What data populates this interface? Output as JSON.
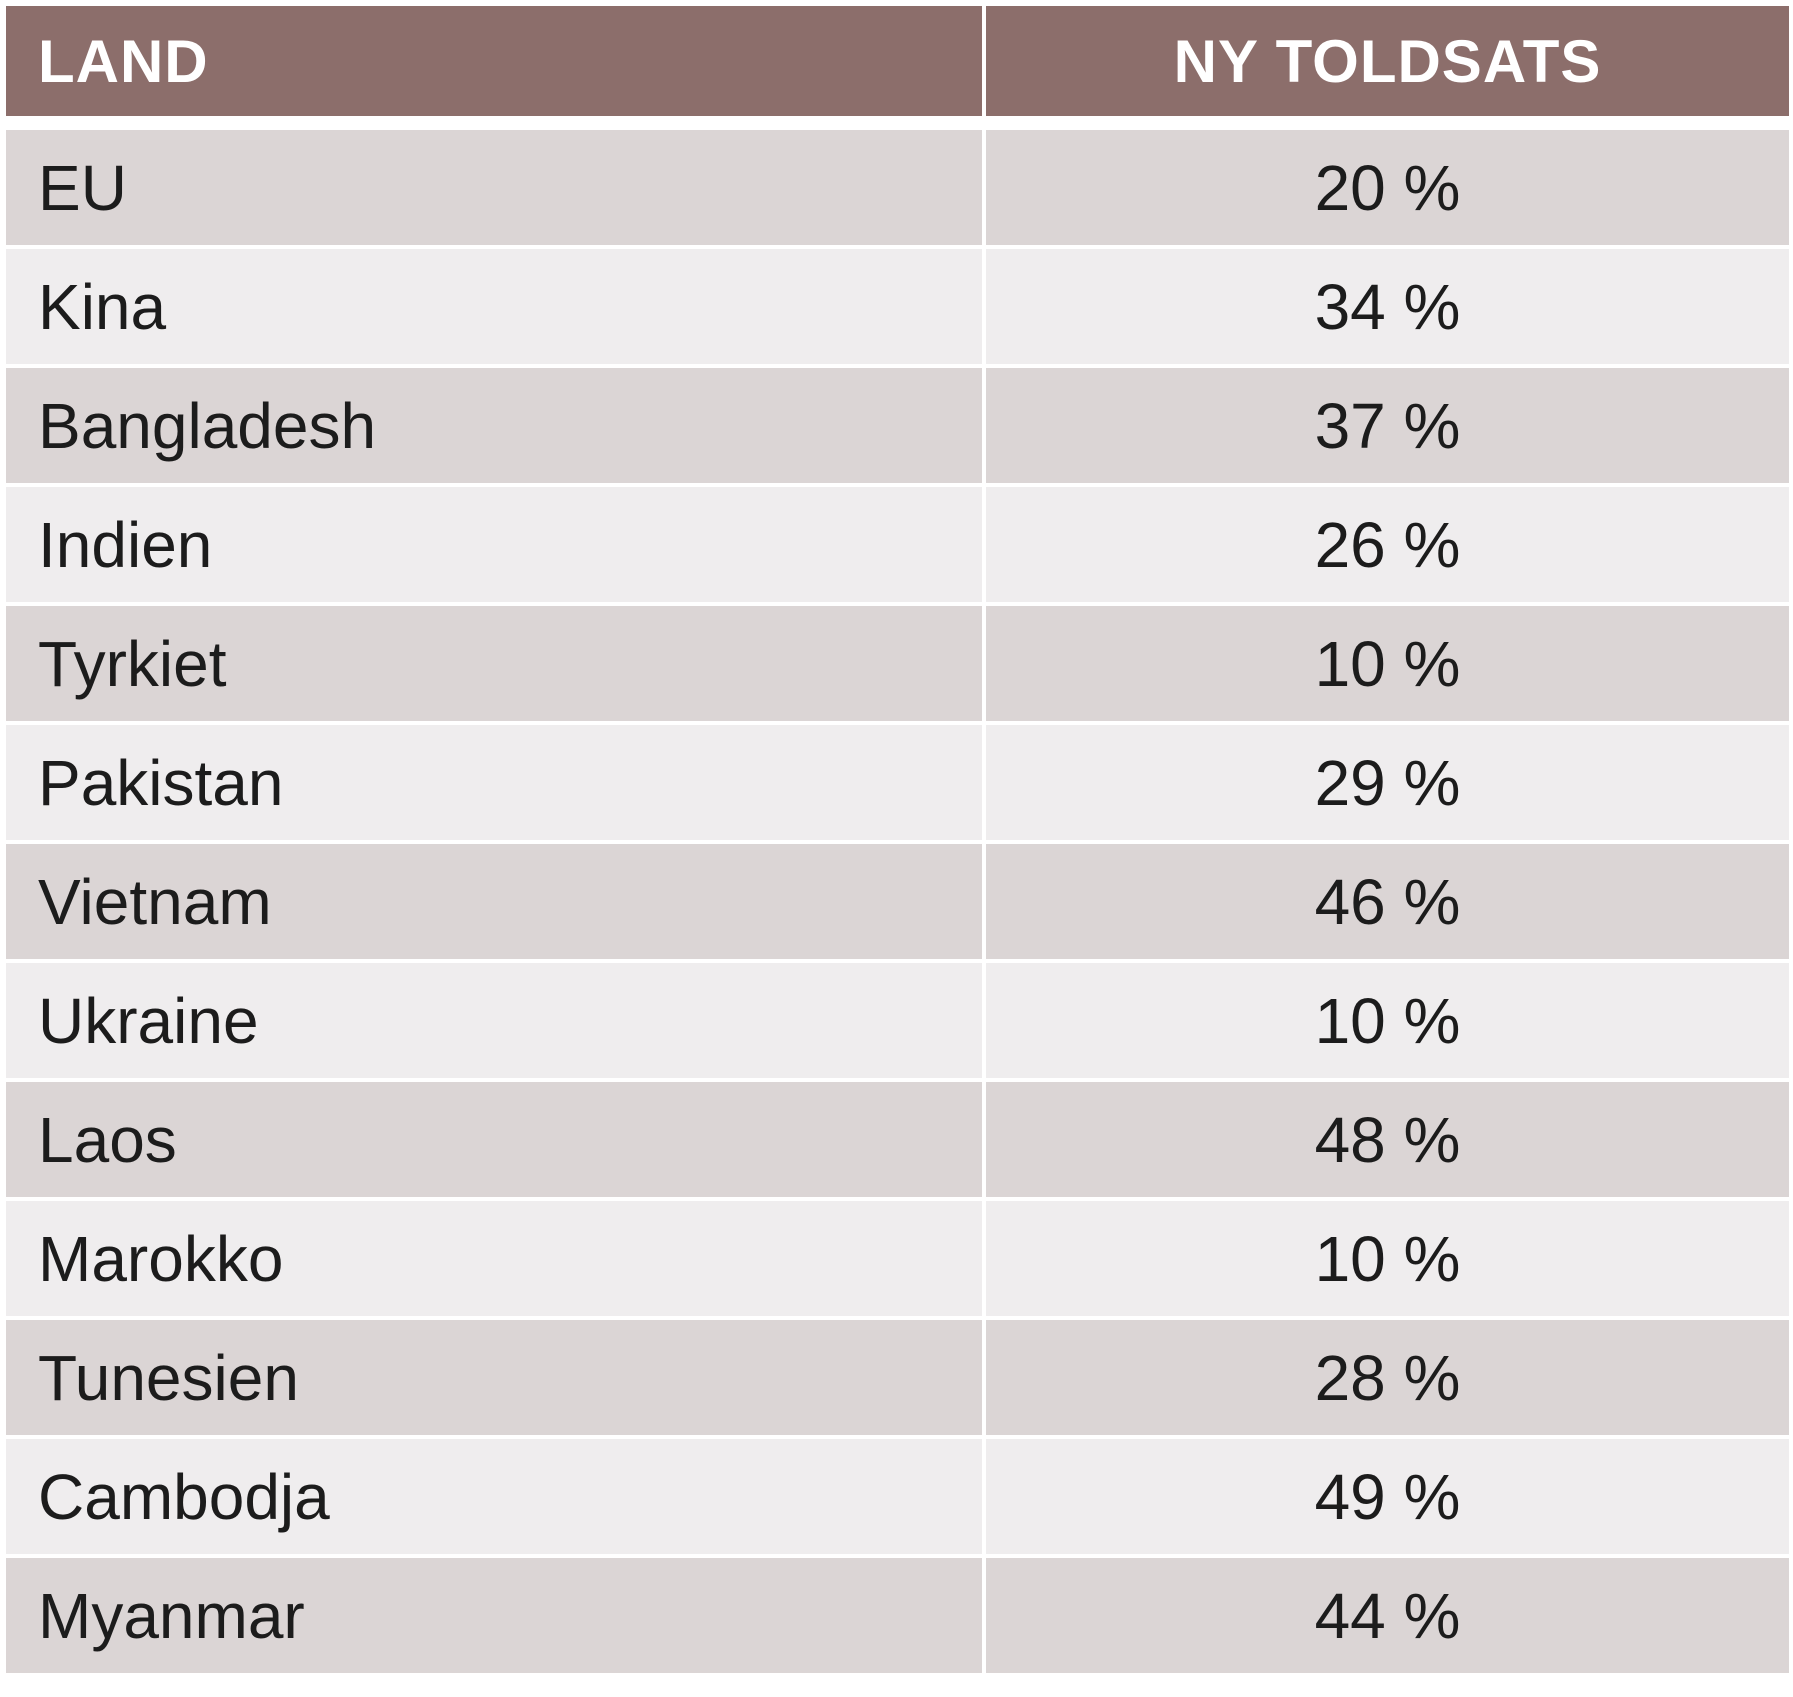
{
  "table": {
    "headers": {
      "land": "LAND",
      "rate": "NY TOLDSATS"
    },
    "rows": [
      {
        "land": "EU",
        "rate": "20 %"
      },
      {
        "land": "Kina",
        "rate": "34 %"
      },
      {
        "land": "Bangladesh",
        "rate": "37 %"
      },
      {
        "land": "Indien",
        "rate": "26 %"
      },
      {
        "land": "Tyrkiet",
        "rate": "10 %"
      },
      {
        "land": "Pakistan",
        "rate": "29 %"
      },
      {
        "land": "Vietnam",
        "rate": "46 %"
      },
      {
        "land": "Ukraine",
        "rate": "10 %"
      },
      {
        "land": "Laos",
        "rate": "48 %"
      },
      {
        "land": "Marokko",
        "rate": "10 %"
      },
      {
        "land": "Tunesien",
        "rate": "28 %"
      },
      {
        "land": "Cambodja",
        "rate": "49 %"
      },
      {
        "land": "Myanmar",
        "rate": "44 %"
      }
    ]
  },
  "colors": {
    "header_bg": "#8c6e6b",
    "row_dark": "#dbd5d5",
    "row_light": "#efedee",
    "text": "#1c1c1c"
  }
}
